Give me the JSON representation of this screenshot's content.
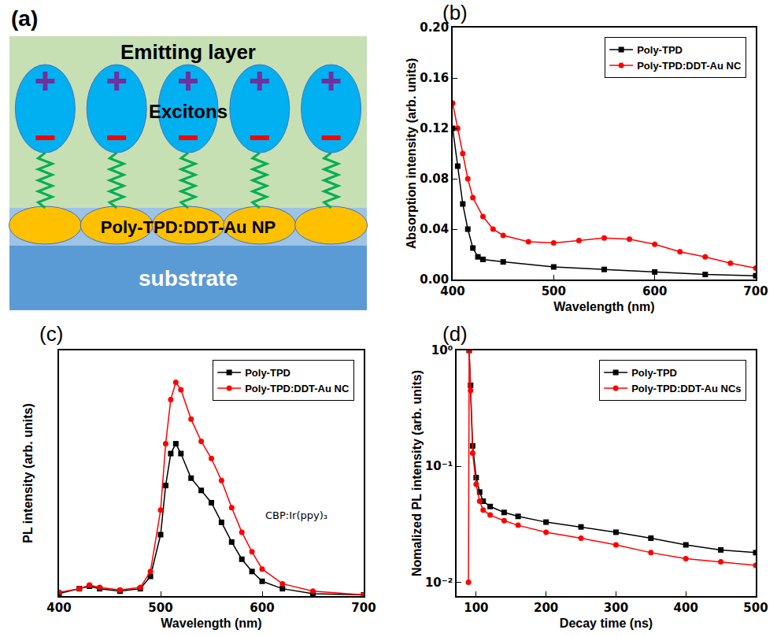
{
  "diagram": {
    "label": "(a)",
    "top_layer": "Emitting layer",
    "excitons": "Excitons",
    "np_layer": "Poly-TPD:DDT-Au NP",
    "substrate": "substrate",
    "count": 5
  },
  "chart_data": [
    {
      "panel": "(b)",
      "type": "line",
      "x_label": "Wavelength (nm)",
      "y_label": "Absorption intensity (arb. units)",
      "xlim": [
        400,
        700
      ],
      "ylim": [
        0,
        0.2
      ],
      "xticks": [
        400,
        500,
        600,
        700
      ],
      "yticks": [
        {
          "value": 0,
          "label": "0.00"
        },
        {
          "value": 0.04,
          "label": "0.04"
        },
        {
          "value": 0.08,
          "label": "0.08"
        },
        {
          "value": 0.12,
          "label": "0.12"
        },
        {
          "value": 0.16,
          "label": "0.16"
        },
        {
          "value": 0.2,
          "label": "0.20"
        }
      ],
      "grid": false,
      "legend": "upper right",
      "series": [
        {
          "name": "Poly-TPD",
          "color": "#000000",
          "marker": "square",
          "line_style": "solid",
          "x": [
            400,
            405,
            410,
            415,
            420,
            425,
            430,
            450,
            500,
            550,
            600,
            650,
            700
          ],
          "values": [
            0.12,
            0.09,
            0.06,
            0.04,
            0.025,
            0.018,
            0.016,
            0.014,
            0.01,
            0.008,
            0.006,
            0.004,
            0.003
          ]
        },
        {
          "name": "Poly-TPD:DDT-Au NC",
          "color": "#ff0000",
          "marker": "circle",
          "line_style": "solid",
          "x": [
            400,
            405,
            410,
            415,
            420,
            430,
            440,
            450,
            475,
            500,
            525,
            550,
            575,
            600,
            625,
            650,
            675,
            700
          ],
          "values": [
            0.14,
            0.12,
            0.1,
            0.08,
            0.065,
            0.05,
            0.04,
            0.035,
            0.03,
            0.029,
            0.031,
            0.033,
            0.032,
            0.028,
            0.022,
            0.018,
            0.013,
            0.009
          ]
        }
      ]
    },
    {
      "panel": "(c)",
      "type": "line",
      "x_label": "Wavelength (nm)",
      "y_label": "PL intensity (arb. units)",
      "xlim": [
        400,
        700
      ],
      "ylim": [
        0,
        1
      ],
      "xticks": [
        400,
        500,
        600,
        700
      ],
      "tick_labels": "x",
      "grid": false,
      "legend": "upper right",
      "annotation": "CBP:Ir(ppy)₃",
      "series": [
        {
          "name": "Poly-TPD",
          "color": "#000000",
          "marker": "square",
          "line_style": "solid",
          "x": [
            400,
            420,
            430,
            440,
            460,
            480,
            490,
            500,
            505,
            510,
            515,
            520,
            530,
            540,
            550,
            560,
            570,
            580,
            590,
            600,
            620,
            650,
            700
          ],
          "values": [
            0.01,
            0.03,
            0.04,
            0.03,
            0.02,
            0.03,
            0.08,
            0.25,
            0.45,
            0.58,
            0.62,
            0.58,
            0.48,
            0.43,
            0.38,
            0.3,
            0.22,
            0.15,
            0.1,
            0.06,
            0.03,
            0.01,
            0.005
          ]
        },
        {
          "name": "Poly-TPD:DDT-Au NC",
          "color": "#ff0000",
          "marker": "circle",
          "line_style": "solid",
          "x": [
            400,
            420,
            430,
            440,
            460,
            480,
            490,
            500,
            505,
            510,
            515,
            520,
            530,
            540,
            550,
            560,
            570,
            580,
            590,
            600,
            620,
            650,
            700
          ],
          "values": [
            0.015,
            0.03,
            0.045,
            0.035,
            0.025,
            0.035,
            0.1,
            0.35,
            0.62,
            0.8,
            0.87,
            0.84,
            0.72,
            0.63,
            0.56,
            0.47,
            0.36,
            0.26,
            0.18,
            0.11,
            0.05,
            0.02,
            0.005
          ]
        }
      ]
    },
    {
      "panel": "(d)",
      "type": "line",
      "x_label": "Decay time (ns)",
      "y_label": "Nomalized PL intensity (arb. units)",
      "log": "y",
      "xlim": [
        72,
        500
      ],
      "ylim": [
        0.0076,
        1
      ],
      "xticks": [
        100,
        200,
        300,
        400,
        500
      ],
      "yticks": [
        {
          "value": 0.01,
          "label": "10⁻²"
        },
        {
          "value": 0.1,
          "label": "10⁻¹"
        },
        {
          "value": 1,
          "label": "10⁰"
        }
      ],
      "grid": false,
      "legend": "upper right",
      "series": [
        {
          "name": "Poly-TPD",
          "color": "#000000",
          "marker": "square",
          "line_style": "solid",
          "x": [
            90,
            92,
            95,
            100,
            105,
            110,
            120,
            140,
            160,
            200,
            250,
            300,
            350,
            400,
            450,
            500
          ],
          "values": [
            1.0,
            0.5,
            0.15,
            0.08,
            0.06,
            0.05,
            0.045,
            0.04,
            0.037,
            0.033,
            0.03,
            0.027,
            0.024,
            0.021,
            0.019,
            0.018
          ]
        },
        {
          "name": "Poly-TPD:DDT-Au NCs",
          "color": "#ff0000",
          "marker": "circle",
          "line_style": "solid",
          "x": [
            89,
            90,
            92,
            95,
            100,
            105,
            110,
            120,
            140,
            160,
            200,
            250,
            300,
            350,
            400,
            450,
            500
          ],
          "values": [
            0.01,
            1.0,
            0.45,
            0.13,
            0.07,
            0.05,
            0.042,
            0.038,
            0.034,
            0.031,
            0.027,
            0.024,
            0.021,
            0.018,
            0.016,
            0.015,
            0.014
          ]
        }
      ]
    }
  ]
}
